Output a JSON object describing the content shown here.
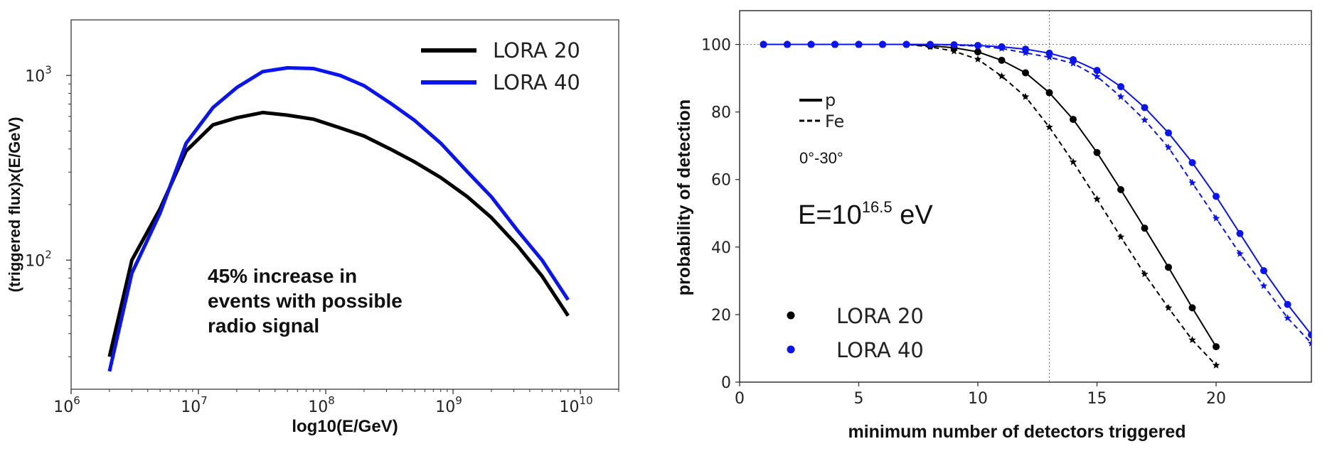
{
  "chart_data": [
    {
      "type": "line",
      "xlabel": "log10(E/GeV)",
      "ylabel": "(triggered flux)x(E/GeV)",
      "xscale": "log",
      "yscale": "log",
      "xlim": [
        1000000,
        20000000000
      ],
      "ylim": [
        20,
        2000
      ],
      "x_ticks": [
        {
          "base": "10",
          "exp": "6",
          "value": 1000000
        },
        {
          "base": "10",
          "exp": "7",
          "value": 10000000
        },
        {
          "base": "10",
          "exp": "8",
          "value": 100000000
        },
        {
          "base": "10",
          "exp": "9",
          "value": 1000000000
        },
        {
          "base": "10",
          "exp": "10",
          "value": 10000000000
        }
      ],
      "y_ticks": [
        {
          "base": "10",
          "exp": "2",
          "value": 100
        },
        {
          "base": "10",
          "exp": "3",
          "value": 1000
        }
      ],
      "legend_position": "top-right",
      "series": [
        {
          "name": "LORA 20",
          "color": "#000000",
          "x": [
            2000000,
            3000000,
            5000000,
            8000000,
            13000000,
            20000000,
            32000000,
            50000000,
            80000000,
            130000000,
            200000000,
            320000000,
            500000000,
            800000000,
            1300000000,
            2000000000,
            3200000000,
            5000000000,
            8000000000
          ],
          "y": [
            30,
            100,
            190,
            390,
            540,
            590,
            630,
            610,
            580,
            520,
            470,
            400,
            340,
            280,
            220,
            170,
            120,
            82,
            50
          ]
        },
        {
          "name": "LORA 40",
          "color": "#0a14f0",
          "x": [
            2000000,
            3000000,
            5000000,
            8000000,
            13000000,
            20000000,
            32000000,
            50000000,
            80000000,
            130000000,
            200000000,
            320000000,
            500000000,
            800000000,
            1300000000,
            2000000000,
            3200000000,
            5000000000,
            8000000000
          ],
          "y": [
            25,
            85,
            180,
            430,
            670,
            860,
            1050,
            1100,
            1090,
            1000,
            880,
            710,
            570,
            430,
            300,
            220,
            145,
            100,
            61
          ]
        }
      ],
      "annotation": [
        "45% increase in",
        "events with possible",
        "radio signal"
      ]
    },
    {
      "type": "line",
      "xlabel": "minimum number of detectors triggered",
      "ylabel": "probability of detection",
      "xlim": [
        0,
        24
      ],
      "ylim": [
        0,
        110
      ],
      "x_ticks": [
        0,
        5,
        10,
        15,
        20
      ],
      "y_ticks": [
        0,
        20,
        40,
        60,
        80,
        100
      ],
      "reference_lines": {
        "x": 13,
        "y": 100
      },
      "line_style_legend": {
        "solid": "p",
        "dashed": "Fe"
      },
      "angle_label": "0°-30°",
      "energy_label": {
        "prefix": "E=10",
        "exponent": "16.5",
        "suffix": " eV"
      },
      "legend": [
        {
          "name": "LORA 20",
          "color": "#000000"
        },
        {
          "name": "LORA 40",
          "color": "#0a14f0"
        }
      ],
      "series": [
        {
          "name": "LORA 20 p",
          "color": "#000000",
          "style": "solid",
          "marker": "circle",
          "x": [
            1,
            2,
            3,
            4,
            5,
            6,
            7,
            8,
            9,
            10,
            11,
            12,
            13,
            14,
            15,
            16,
            17,
            18,
            19,
            20
          ],
          "y": [
            100,
            100,
            100,
            100,
            100,
            100,
            100,
            99.6,
            99,
            97.8,
            95.3,
            91.6,
            85.7,
            77.8,
            68,
            57,
            45.6,
            34,
            22,
            10.5
          ]
        },
        {
          "name": "LORA 20 Fe",
          "color": "#000000",
          "style": "dashed",
          "marker": "star",
          "x": [
            1,
            2,
            3,
            4,
            5,
            6,
            7,
            8,
            9,
            10,
            11,
            12,
            13,
            14,
            15,
            16,
            17,
            18,
            19,
            20
          ],
          "y": [
            100,
            100,
            100,
            100,
            100,
            100,
            100,
            99.3,
            98,
            95.6,
            90.6,
            84.5,
            75.5,
            65.2,
            54.2,
            43,
            32,
            22,
            12.5,
            5
          ]
        },
        {
          "name": "LORA 40 p",
          "color": "#0a14f0",
          "style": "solid",
          "marker": "circle",
          "x": [
            1,
            2,
            3,
            4,
            5,
            6,
            7,
            8,
            9,
            10,
            11,
            12,
            13,
            14,
            15,
            16,
            17,
            18,
            19,
            20,
            21,
            22,
            23,
            24
          ],
          "y": [
            100,
            100,
            100,
            100,
            100,
            100,
            100,
            100,
            99.9,
            99.7,
            99.3,
            98.6,
            97.4,
            95.5,
            92.3,
            87.5,
            81.3,
            73.8,
            65,
            55,
            44,
            33,
            23,
            14
          ]
        },
        {
          "name": "LORA 40 Fe",
          "color": "#0a14f0",
          "style": "dashed",
          "marker": "star",
          "x": [
            1,
            2,
            3,
            4,
            5,
            6,
            7,
            8,
            9,
            10,
            11,
            12,
            13,
            14,
            15,
            16,
            17,
            18,
            19,
            20,
            21,
            22,
            23,
            24
          ],
          "y": [
            100,
            100,
            100,
            100,
            100,
            100,
            100,
            100,
            99.8,
            99.5,
            98.8,
            97.5,
            96.2,
            94.4,
            90.5,
            84.5,
            77.6,
            69.5,
            59,
            48.5,
            38,
            28.5,
            19,
            11.5
          ]
        }
      ]
    }
  ]
}
